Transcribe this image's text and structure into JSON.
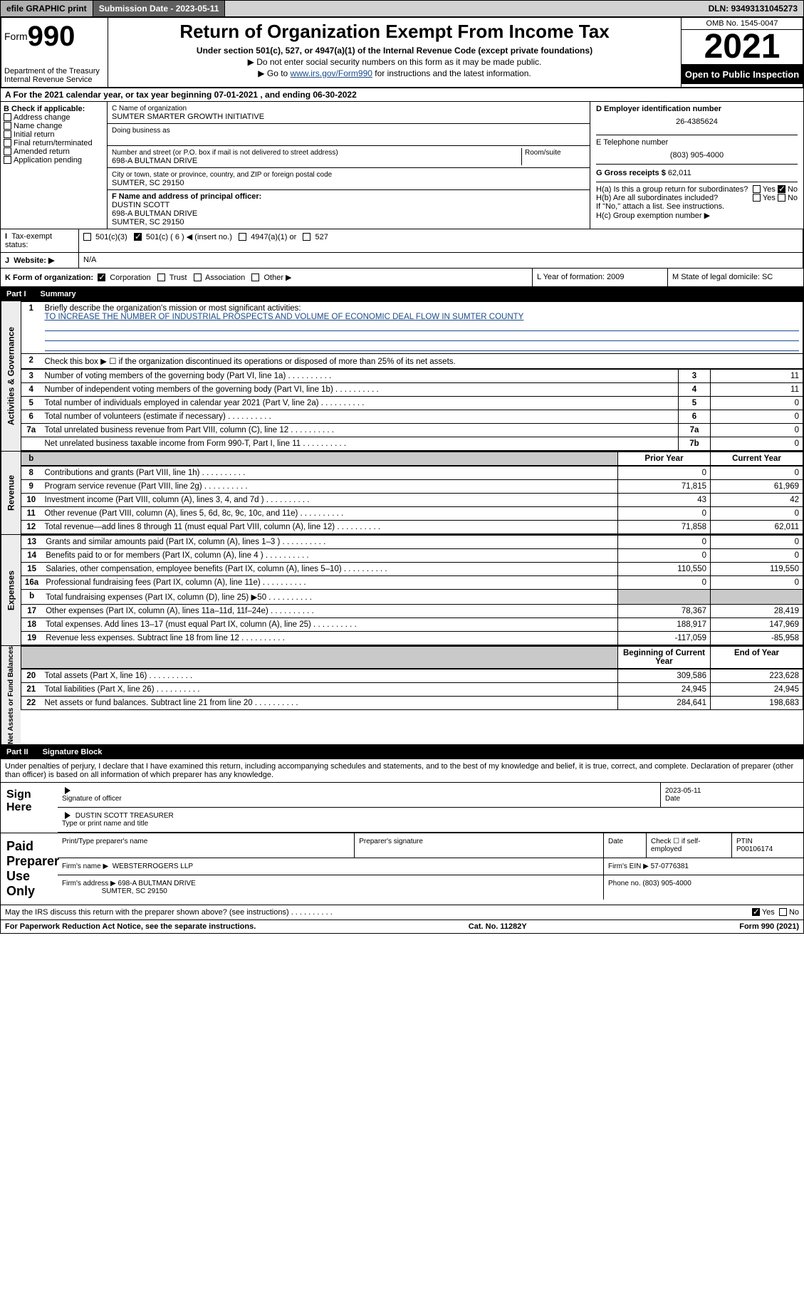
{
  "top_bar": {
    "efile": "efile GRAPHIC print",
    "submission": "Submission Date - 2023-05-11",
    "dln": "DLN: 93493131045273"
  },
  "header": {
    "form_label": "Form",
    "form_no": "990",
    "dept": "Department of the Treasury",
    "irs": "Internal Revenue Service",
    "title": "Return of Organization Exempt From Income Tax",
    "subtitle": "Under section 501(c), 527, or 4947(a)(1) of the Internal Revenue Code (except private foundations)",
    "note1": "▶ Do not enter social security numbers on this form as it may be made public.",
    "note2_pre": "▶ Go to ",
    "note2_link": "www.irs.gov/Form990",
    "note2_post": " for instructions and the latest information.",
    "omb": "OMB No. 1545-0047",
    "year": "2021",
    "open": "Open to Public Inspection"
  },
  "row_A": "A For the 2021 calendar year, or tax year beginning 07-01-2021   , and ending 06-30-2022",
  "box_B": {
    "label": "B Check if applicable:",
    "items": [
      "Address change",
      "Name change",
      "Initial return",
      "Final return/terminated",
      "Amended return",
      "Application pending"
    ]
  },
  "box_C": {
    "label_name": "C Name of organization",
    "name": "SUMTER SMARTER GROWTH INITIATIVE",
    "dba_label": "Doing business as",
    "addr_label": "Number and street (or P.O. box if mail is not delivered to street address)",
    "room_label": "Room/suite",
    "addr": "698-A BULTMAN DRIVE",
    "city_label": "City or town, state or province, country, and ZIP or foreign postal code",
    "city": "SUMTER, SC  29150",
    "officer_label": "F  Name and address of principal officer:",
    "officer_name": "DUSTIN SCOTT",
    "officer_addr1": "698-A BULTMAN DRIVE",
    "officer_addr2": "SUMTER, SC  29150"
  },
  "box_D": {
    "label": "D Employer identification number",
    "val": "26-4385624"
  },
  "box_E": {
    "label": "E Telephone number",
    "val": "(803) 905-4000"
  },
  "box_G": {
    "label": "G Gross receipts $",
    "val": "62,011"
  },
  "box_H": {
    "ha": "H(a)  Is this a group return for subordinates?",
    "hb": "H(b)  Are all subordinates included?",
    "hb_note": "If \"No,\" attach a list. See instructions.",
    "hc": "H(c)  Group exemption number ▶",
    "yes": "Yes",
    "no": "No"
  },
  "row_I": {
    "label": "Tax-exempt status:",
    "opts": [
      "501(c)(3)",
      "501(c) ( 6 ) ◀ (insert no.)",
      "4947(a)(1) or",
      "527"
    ]
  },
  "row_J": {
    "label": "Website: ▶",
    "val": "N/A"
  },
  "row_K": {
    "label": "K Form of organization:",
    "opts": [
      "Corporation",
      "Trust",
      "Association",
      "Other ▶"
    ],
    "L": "L Year of formation: 2009",
    "M": "M State of legal domicile: SC"
  },
  "partI": {
    "hdr": "Part I",
    "title": "Summary",
    "l1_label": "Briefly describe the organization's mission or most significant activities:",
    "l1_text": "TO INCREASE THE NUMBER OF INDUSTRIAL PROSPECTS AND VOLUME OF ECONOMIC DEAL FLOW IN SUMTER COUNTY",
    "l2": "Check this box ▶ ☐  if the organization discontinued its operations or disposed of more than 25% of its net assets.",
    "lines_gov": [
      {
        "n": "3",
        "d": "Number of voting members of the governing body (Part VI, line 1a)",
        "c": "3",
        "v": "11"
      },
      {
        "n": "4",
        "d": "Number of independent voting members of the governing body (Part VI, line 1b)",
        "c": "4",
        "v": "11"
      },
      {
        "n": "5",
        "d": "Total number of individuals employed in calendar year 2021 (Part V, line 2a)",
        "c": "5",
        "v": "0"
      },
      {
        "n": "6",
        "d": "Total number of volunteers (estimate if necessary)",
        "c": "6",
        "v": "0"
      },
      {
        "n": "7a",
        "d": "Total unrelated business revenue from Part VIII, column (C), line 12",
        "c": "7a",
        "v": "0"
      },
      {
        "n": "",
        "d": "Net unrelated business taxable income from Form 990-T, Part I, line 11",
        "c": "7b",
        "v": "0"
      }
    ],
    "col_hdr_prior": "Prior Year",
    "col_hdr_cur": "Current Year",
    "lines_rev": [
      {
        "n": "8",
        "d": "Contributions and grants (Part VIII, line 1h)",
        "p": "0",
        "c": "0"
      },
      {
        "n": "9",
        "d": "Program service revenue (Part VIII, line 2g)",
        "p": "71,815",
        "c": "61,969"
      },
      {
        "n": "10",
        "d": "Investment income (Part VIII, column (A), lines 3, 4, and 7d )",
        "p": "43",
        "c": "42"
      },
      {
        "n": "11",
        "d": "Other revenue (Part VIII, column (A), lines 5, 6d, 8c, 9c, 10c, and 11e)",
        "p": "0",
        "c": "0"
      },
      {
        "n": "12",
        "d": "Total revenue—add lines 8 through 11 (must equal Part VIII, column (A), line 12)",
        "p": "71,858",
        "c": "62,011"
      }
    ],
    "lines_exp": [
      {
        "n": "13",
        "d": "Grants and similar amounts paid (Part IX, column (A), lines 1–3 )",
        "p": "0",
        "c": "0"
      },
      {
        "n": "14",
        "d": "Benefits paid to or for members (Part IX, column (A), line 4 )",
        "p": "0",
        "c": "0"
      },
      {
        "n": "15",
        "d": "Salaries, other compensation, employee benefits (Part IX, column (A), lines 5–10)",
        "p": "110,550",
        "c": "119,550"
      },
      {
        "n": "16a",
        "d": "Professional fundraising fees (Part IX, column (A), line 11e)",
        "p": "0",
        "c": "0"
      },
      {
        "n": "b",
        "d": "Total fundraising expenses (Part IX, column (D), line 25) ▶50",
        "p": "",
        "c": "",
        "grey": true
      },
      {
        "n": "17",
        "d": "Other expenses (Part IX, column (A), lines 11a–11d, 11f–24e)",
        "p": "78,367",
        "c": "28,419"
      },
      {
        "n": "18",
        "d": "Total expenses. Add lines 13–17 (must equal Part IX, column (A), line 25)",
        "p": "188,917",
        "c": "147,969"
      },
      {
        "n": "19",
        "d": "Revenue less expenses. Subtract line 18 from line 12",
        "p": "-117,059",
        "c": "-85,958"
      }
    ],
    "col_hdr_beg": "Beginning of Current Year",
    "col_hdr_end": "End of Year",
    "lines_na": [
      {
        "n": "20",
        "d": "Total assets (Part X, line 16)",
        "p": "309,586",
        "c": "223,628"
      },
      {
        "n": "21",
        "d": "Total liabilities (Part X, line 26)",
        "p": "24,945",
        "c": "24,945"
      },
      {
        "n": "22",
        "d": "Net assets or fund balances. Subtract line 21 from line 20",
        "p": "284,641",
        "c": "198,683"
      }
    ],
    "tabs": {
      "gov": "Activities & Governance",
      "rev": "Revenue",
      "exp": "Expenses",
      "na": "Net Assets or Fund Balances"
    }
  },
  "partII": {
    "hdr": "Part II",
    "title": "Signature Block",
    "decl": "Under penalties of perjury, I declare that I have examined this return, including accompanying schedules and statements, and to the best of my knowledge and belief, it is true, correct, and complete. Declaration of preparer (other than officer) is based on all information of which preparer has any knowledge.",
    "sign_here": "Sign Here",
    "sig_officer": "Signature of officer",
    "date_label": "Date",
    "date": "2023-05-11",
    "officer_name": "DUSTIN SCOTT TREASURER",
    "name_title": "Type or print name and title",
    "paid": "Paid Preparer Use Only",
    "prep_name_lbl": "Print/Type preparer's name",
    "prep_sig_lbl": "Preparer's signature",
    "check_self": "Check ☐ if self-employed",
    "ptin_lbl": "PTIN",
    "ptin": "P00106174",
    "firm_name_lbl": "Firm's name    ▶",
    "firm_name": "WEBSTERROGERS LLP",
    "firm_ein_lbl": "Firm's EIN ▶",
    "firm_ein": "57-0776381",
    "firm_addr_lbl": "Firm's address ▶",
    "firm_addr1": "698-A BULTMAN DRIVE",
    "firm_addr2": "SUMTER, SC  29150",
    "phone_lbl": "Phone no.",
    "phone": "(803) 905-4000",
    "discuss": "May the IRS discuss this return with the preparer shown above? (see instructions)"
  },
  "footer": {
    "l": "For Paperwork Reduction Act Notice, see the separate instructions.",
    "m": "Cat. No. 11282Y",
    "r": "Form 990 (2021)"
  }
}
